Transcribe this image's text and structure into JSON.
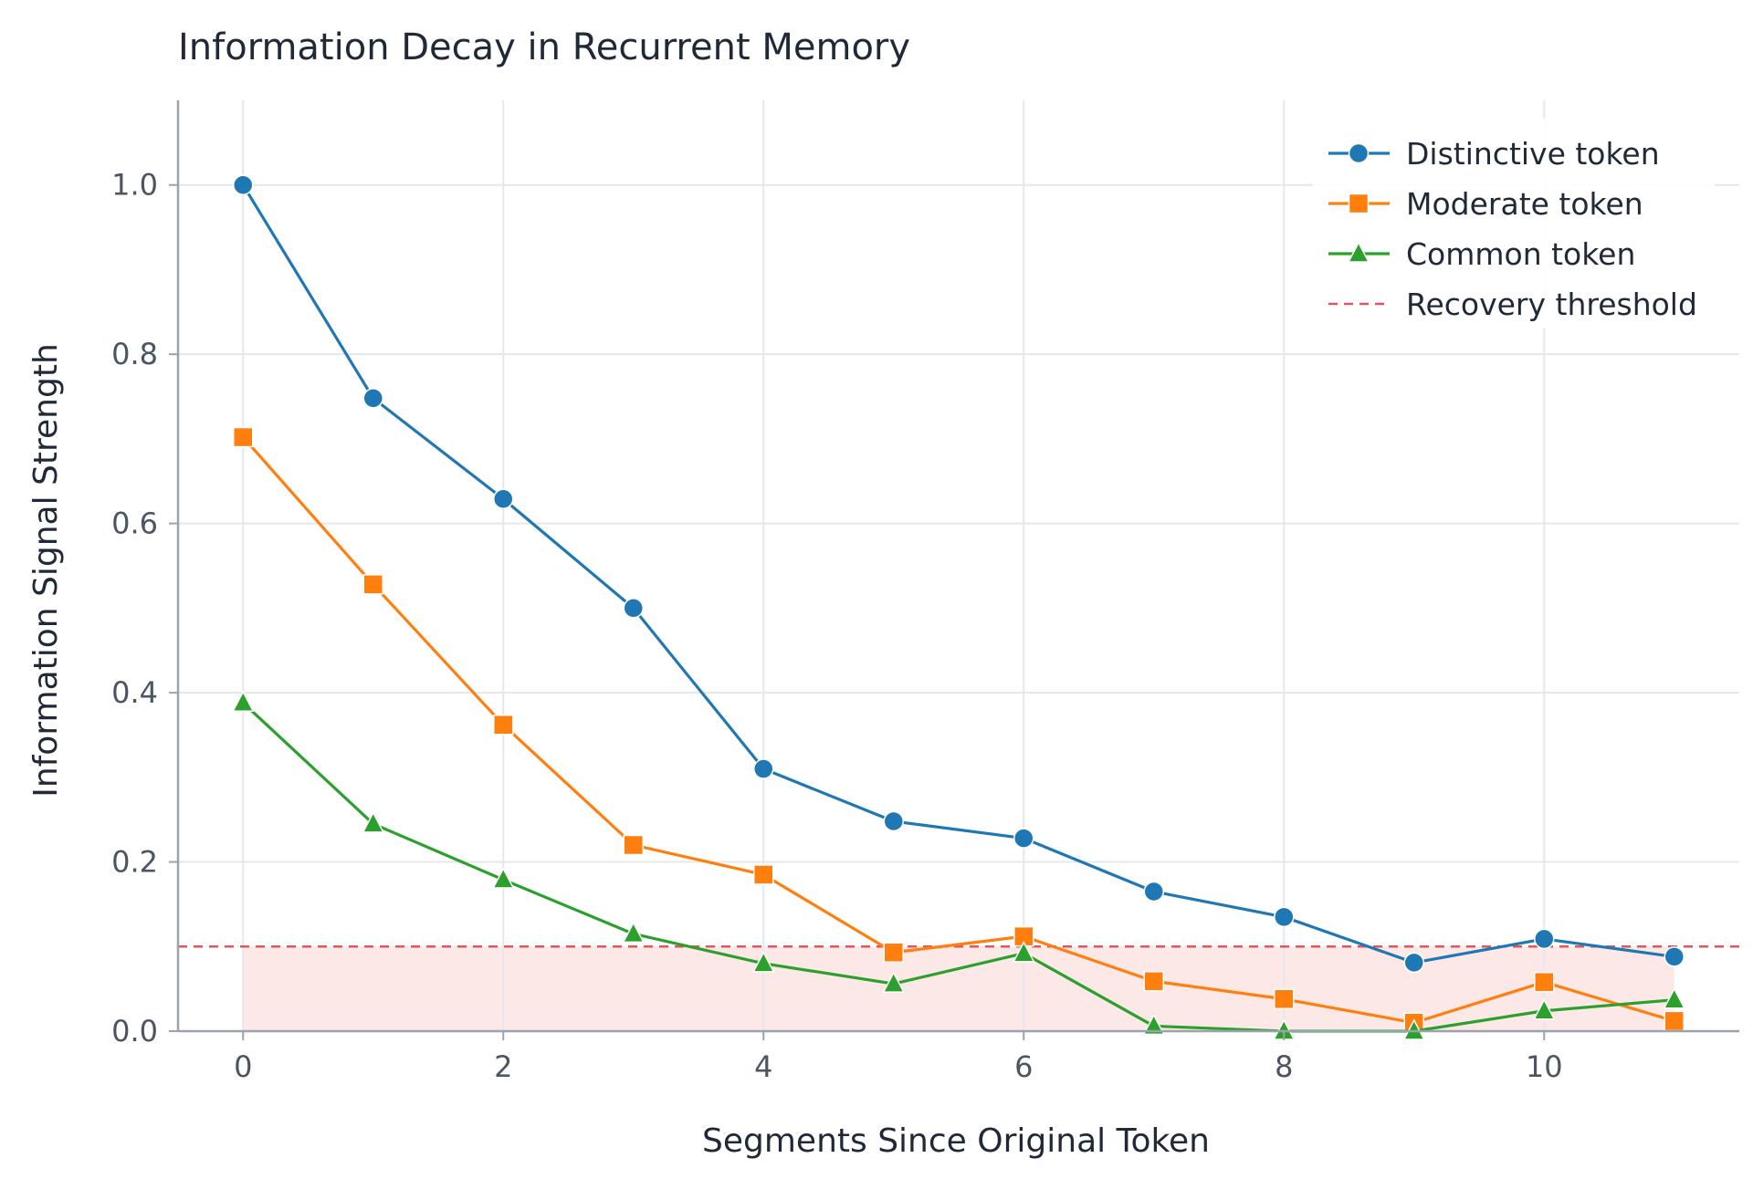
{
  "chart_data": {
    "type": "line",
    "title": "Information Decay in Recurrent Memory",
    "xlabel": "Segments Since Original Token",
    "ylabel": "Information Signal Strength",
    "xlim": [
      -0.5,
      11.5
    ],
    "ylim": [
      0,
      1.1
    ],
    "x_ticks": [
      0,
      2,
      4,
      6,
      8,
      10
    ],
    "y_ticks": [
      0.0,
      0.2,
      0.4,
      0.6,
      0.8,
      1.0
    ],
    "x_tick_labels": [
      "0",
      "2",
      "4",
      "6",
      "8",
      "10"
    ],
    "y_tick_labels": [
      "0.0",
      "0.2",
      "0.4",
      "0.6",
      "0.8",
      "1.0"
    ],
    "x": [
      0,
      1,
      2,
      3,
      4,
      5,
      6,
      7,
      8,
      9,
      10,
      11
    ],
    "grid": true,
    "legend_position": "top-right",
    "series": [
      {
        "name": "Distinctive token",
        "color": "#1f77b4",
        "marker": "circle",
        "values": [
          1.0,
          0.748,
          0.629,
          0.5,
          0.31,
          0.248,
          0.228,
          0.165,
          0.135,
          0.081,
          0.109,
          0.088
        ]
      },
      {
        "name": "Moderate token",
        "color": "#ff7f0e",
        "marker": "square",
        "values": [
          0.702,
          0.528,
          0.362,
          0.22,
          0.185,
          0.093,
          0.112,
          0.059,
          0.038,
          0.01,
          0.058,
          0.012
        ]
      },
      {
        "name": "Common token",
        "color": "#2ca02c",
        "marker": "triangle",
        "values": [
          0.388,
          0.245,
          0.179,
          0.115,
          0.08,
          0.056,
          0.092,
          0.006,
          0.0,
          0.0,
          0.024,
          0.037
        ]
      }
    ],
    "threshold": {
      "name": "Recovery threshold",
      "value": 0.1,
      "color": "#e15759",
      "fill_color": "#fde8e8"
    }
  }
}
